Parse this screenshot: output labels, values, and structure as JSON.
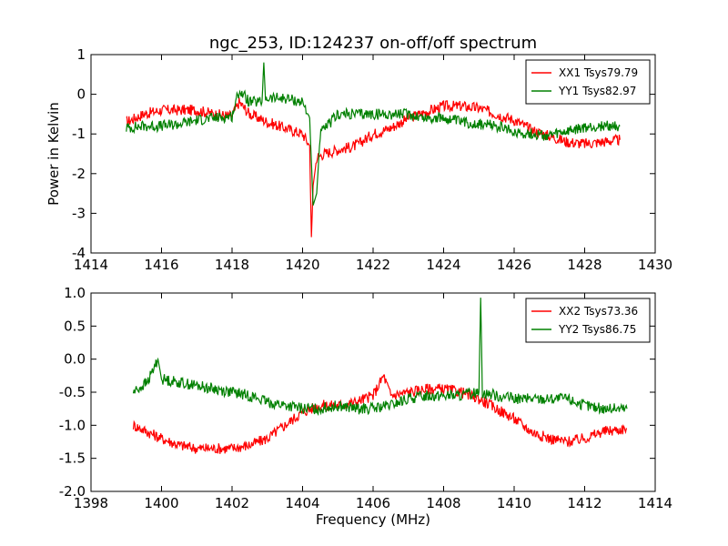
{
  "figure": {
    "title": "ngc_253, ID:124237 on-off/off spectrum"
  },
  "chart_data": [
    {
      "type": "line",
      "title": "ngc_253, ID:124237 on-off/off spectrum",
      "xlabel": "",
      "ylabel": "Power in Kelvin",
      "xlim": [
        1414,
        1430
      ],
      "ylim": [
        -4,
        1
      ],
      "xticks": [
        1414,
        1416,
        1418,
        1420,
        1422,
        1424,
        1426,
        1428,
        1430
      ],
      "yticks": [
        -4,
        -3,
        -2,
        -1,
        0,
        1
      ],
      "legend_position": "top-right",
      "series": [
        {
          "name": "XX1 Tsys79.79",
          "color": "#ff0000",
          "x": [
            1415.0,
            1415.5,
            1416.0,
            1416.5,
            1417.0,
            1417.5,
            1418.0,
            1418.2,
            1418.5,
            1419.0,
            1419.5,
            1420.0,
            1420.2,
            1420.25,
            1420.3,
            1420.4,
            1420.6,
            1421.0,
            1421.5,
            1422.0,
            1422.5,
            1423.0,
            1423.5,
            1424.0,
            1424.5,
            1425.0,
            1425.5,
            1426.0,
            1426.5,
            1427.0,
            1427.5,
            1428.0,
            1428.5,
            1429.0
          ],
          "y": [
            -0.7,
            -0.5,
            -0.4,
            -0.4,
            -0.4,
            -0.5,
            -0.55,
            -0.2,
            -0.5,
            -0.7,
            -0.85,
            -1.0,
            -1.3,
            -3.6,
            -2.3,
            -1.6,
            -1.5,
            -1.4,
            -1.3,
            -1.0,
            -0.85,
            -0.6,
            -0.45,
            -0.3,
            -0.3,
            -0.35,
            -0.5,
            -0.65,
            -0.9,
            -1.05,
            -1.2,
            -1.25,
            -1.2,
            -1.15
          ]
        },
        {
          "name": "YY1 Tsys82.97",
          "color": "#008000",
          "x": [
            1415.0,
            1415.5,
            1416.0,
            1416.5,
            1417.0,
            1417.5,
            1418.0,
            1418.2,
            1418.5,
            1418.85,
            1418.9,
            1418.95,
            1419.5,
            1420.0,
            1420.2,
            1420.3,
            1420.4,
            1420.5,
            1421.0,
            1421.5,
            1422.0,
            1422.5,
            1423.0,
            1423.5,
            1424.0,
            1424.5,
            1425.0,
            1425.5,
            1426.0,
            1426.5,
            1427.0,
            1427.5,
            1428.0,
            1428.5,
            1429.0
          ],
          "y": [
            -0.85,
            -0.8,
            -0.8,
            -0.75,
            -0.65,
            -0.6,
            -0.55,
            0.1,
            -0.2,
            -0.2,
            0.8,
            -0.1,
            -0.1,
            -0.2,
            -0.6,
            -2.8,
            -2.5,
            -1.0,
            -0.5,
            -0.5,
            -0.5,
            -0.5,
            -0.5,
            -0.6,
            -0.6,
            -0.7,
            -0.75,
            -0.8,
            -0.95,
            -1.0,
            -1.05,
            -0.95,
            -0.85,
            -0.8,
            -0.8
          ]
        }
      ]
    },
    {
      "type": "line",
      "title": "",
      "xlabel": "Frequency (MHz)",
      "ylabel": "",
      "xlim": [
        1398,
        1414
      ],
      "ylim": [
        -2.0,
        1.0
      ],
      "xticks": [
        1398,
        1400,
        1402,
        1404,
        1406,
        1408,
        1410,
        1412,
        1414
      ],
      "yticks": [
        -2.0,
        -1.5,
        -1.0,
        -0.5,
        0.0,
        0.5,
        1.0
      ],
      "legend_position": "top-right",
      "series": [
        {
          "name": "XX2 Tsys73.36",
          "color": "#ff0000",
          "x": [
            1399.2,
            1399.6,
            1400.0,
            1400.5,
            1401.0,
            1401.5,
            1402.0,
            1402.5,
            1403.0,
            1403.5,
            1404.0,
            1404.5,
            1405.0,
            1405.5,
            1406.0,
            1406.3,
            1406.5,
            1407.0,
            1407.5,
            1408.0,
            1408.5,
            1409.0,
            1409.5,
            1410.0,
            1410.5,
            1411.0,
            1411.5,
            1412.0,
            1412.5,
            1413.2
          ],
          "y": [
            -1.0,
            -1.1,
            -1.2,
            -1.3,
            -1.35,
            -1.35,
            -1.35,
            -1.3,
            -1.2,
            -1.0,
            -0.8,
            -0.7,
            -0.7,
            -0.65,
            -0.55,
            -0.25,
            -0.55,
            -0.5,
            -0.45,
            -0.45,
            -0.5,
            -0.6,
            -0.75,
            -0.9,
            -1.1,
            -1.2,
            -1.25,
            -1.2,
            -1.1,
            -1.05
          ]
        },
        {
          "name": "YY2 Tsys86.75",
          "color": "#008000",
          "x": [
            1399.2,
            1399.6,
            1399.9,
            1400.0,
            1400.5,
            1401.0,
            1401.5,
            1402.0,
            1402.5,
            1403.0,
            1403.5,
            1404.0,
            1404.5,
            1405.0,
            1405.5,
            1406.0,
            1406.5,
            1407.0,
            1407.5,
            1408.0,
            1408.5,
            1409.0,
            1409.05,
            1409.1,
            1409.5,
            1410.0,
            1410.5,
            1411.0,
            1411.5,
            1412.0,
            1412.5,
            1413.2
          ],
          "y": [
            -0.5,
            -0.35,
            0.0,
            -0.3,
            -0.35,
            -0.4,
            -0.45,
            -0.5,
            -0.55,
            -0.65,
            -0.7,
            -0.75,
            -0.75,
            -0.7,
            -0.75,
            -0.75,
            -0.7,
            -0.6,
            -0.55,
            -0.55,
            -0.55,
            -0.5,
            0.93,
            -0.5,
            -0.55,
            -0.6,
            -0.6,
            -0.6,
            -0.6,
            -0.7,
            -0.75,
            -0.75
          ]
        }
      ]
    }
  ]
}
